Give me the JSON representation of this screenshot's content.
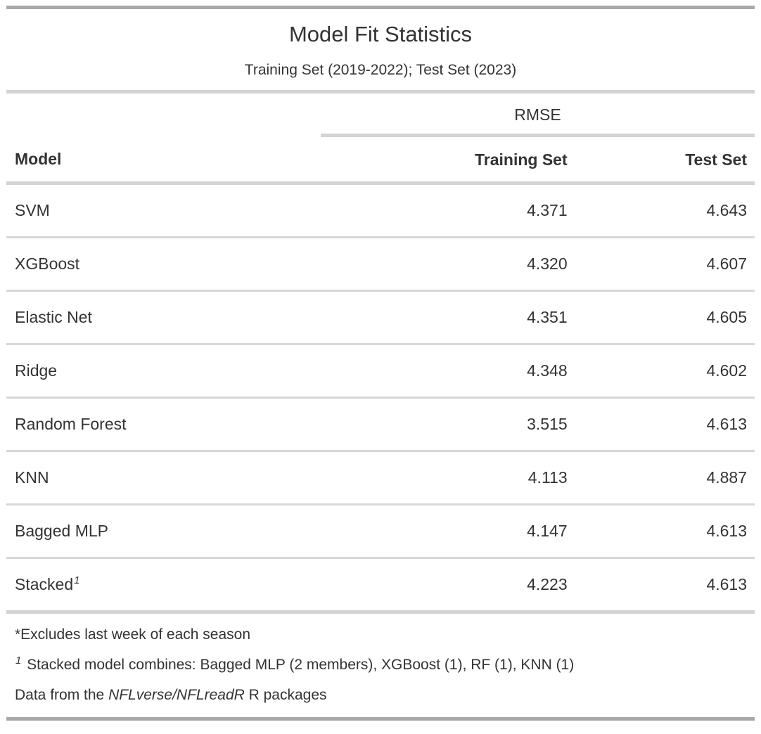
{
  "table": {
    "title": "Model Fit Statistics",
    "subtitle": "Training Set (2019-2022); Test Set (2023)",
    "spanner": "RMSE",
    "columns": {
      "model": "Model",
      "training": "Training Set",
      "test": "Test Set"
    },
    "rows": [
      {
        "model": "SVM",
        "training": "4.371",
        "test": "4.643"
      },
      {
        "model": "XGBoost",
        "training": "4.320",
        "test": "4.607"
      },
      {
        "model": "Elastic Net",
        "training": "4.351",
        "test": "4.605"
      },
      {
        "model": "Ridge",
        "training": "4.348",
        "test": "4.602"
      },
      {
        "model": "Random Forest",
        "training": "3.515",
        "test": "4.613"
      },
      {
        "model": "KNN",
        "training": "4.113",
        "test": "4.887"
      },
      {
        "model": "Bagged MLP",
        "training": "4.147",
        "test": "4.613"
      },
      {
        "model": "Stacked",
        "footnote_mark": "1",
        "training": "4.223",
        "test": "4.613"
      }
    ],
    "footnotes": {
      "note1": "*Excludes last week of each season",
      "note2_mark": "1",
      "note2_text": " Stacked model combines: Bagged MLP (2 members), XGBoost (1), RF (1), KNN (1)",
      "source_prefix": "Data from the ",
      "source_italic": "NFLverse/NFLreadR",
      "source_suffix": " R packages"
    },
    "colors": {
      "text": "#333333",
      "outer_border": "#a8a8a8",
      "inner_border": "#d3d3d3",
      "row_divider": "#d7d7d7",
      "background": "#ffffff"
    }
  },
  "chart_data": {
    "type": "table",
    "title": "Model Fit Statistics",
    "subtitle": "Training Set (2019-2022); Test Set (2023)",
    "column_spanner": "RMSE",
    "columns": [
      "Model",
      "Training Set",
      "Test Set"
    ],
    "rows": [
      [
        "SVM",
        4.371,
        4.643
      ],
      [
        "XGBoost",
        4.32,
        4.607
      ],
      [
        "Elastic Net",
        4.351,
        4.605
      ],
      [
        "Ridge",
        4.348,
        4.602
      ],
      [
        "Random Forest",
        3.515,
        4.613
      ],
      [
        "KNN",
        4.113,
        4.887
      ],
      [
        "Bagged MLP",
        4.147,
        4.613
      ],
      [
        "Stacked",
        4.223,
        4.613
      ]
    ],
    "footnotes": [
      "*Excludes last week of each season",
      "1 Stacked model combines: Bagged MLP (2 members), XGBoost (1), RF (1), KNN (1)",
      "Data from the NFLverse/NFLreadR R packages"
    ]
  }
}
